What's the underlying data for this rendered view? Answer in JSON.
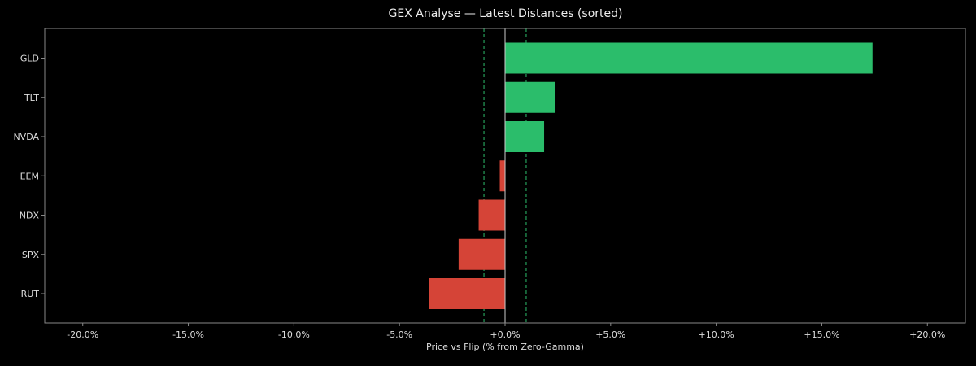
{
  "chart_data": {
    "type": "bar",
    "orientation": "horizontal",
    "title": "GEX Analyse — Latest Distances (sorted)",
    "xlabel": "Price vs Flip (% from Zero-Gamma)",
    "ylabel": "",
    "xlim": [
      -21.8,
      21.8
    ],
    "xticks": [
      -20,
      -15,
      -10,
      -5,
      0,
      5,
      10,
      15,
      20
    ],
    "xtick_labels": [
      "-20.0%",
      "-15.0%",
      "-10.0%",
      "-5.0%",
      "+0.0%",
      "+5.0%",
      "+10.0%",
      "+15.0%",
      "+20.0%"
    ],
    "categories": [
      "GLD",
      "TLT",
      "NVDA",
      "EEM",
      "NDX",
      "SPX",
      "RUT"
    ],
    "values": [
      17.4,
      2.35,
      1.85,
      -0.25,
      -1.25,
      -2.2,
      -3.6
    ],
    "reference_lines": [
      {
        "x": 0,
        "style": "solid",
        "color": "#cccccc"
      },
      {
        "x": -1,
        "style": "dashed",
        "color": "#2dbe6c"
      },
      {
        "x": 1,
        "style": "dashed",
        "color": "#2dbe6c"
      }
    ],
    "colors": {
      "positive": "#2bbd6b",
      "negative": "#d54437",
      "background": "#000000",
      "axis": "#888888",
      "text": "#dddddd"
    },
    "grid": false,
    "legend": "none"
  }
}
